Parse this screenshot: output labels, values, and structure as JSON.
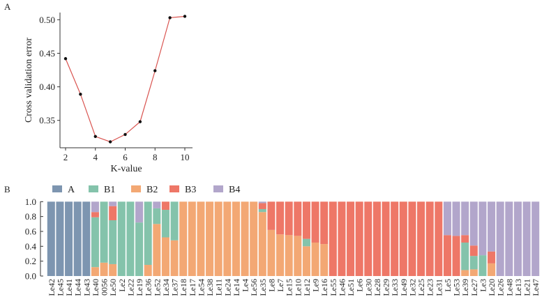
{
  "chart_data": [
    {
      "panel": "A",
      "type": "line",
      "title": "",
      "xlabel": "K-value",
      "ylabel": "Cross validation error",
      "x": [
        2,
        3,
        4,
        5,
        6,
        7,
        8,
        9,
        10
      ],
      "series": [
        {
          "name": "Cross validation error",
          "values": [
            0.442,
            0.389,
            0.326,
            0.318,
            0.329,
            0.348,
            0.424,
            0.503,
            0.505
          ],
          "color": "#d9534f",
          "marker_color": "#111111"
        }
      ],
      "xticks": [
        "2",
        "4",
        "6",
        "8",
        "10"
      ],
      "xtick_values": [
        2,
        4,
        6,
        8,
        10
      ],
      "yticks": [
        "0.35",
        "0.40",
        "0.45",
        "0.50"
      ],
      "ytick_values": [
        0.35,
        0.4,
        0.45,
        0.5
      ],
      "xlim": [
        1.8,
        10.4
      ],
      "ylim": [
        0.31,
        0.513
      ],
      "grid": false
    },
    {
      "panel": "B",
      "type": "bar",
      "stacked": true,
      "title": "",
      "xlabel": "",
      "ylabel": "",
      "ylim": [
        0,
        1.0
      ],
      "yticks": [
        "0.0",
        "0.2",
        "0.4",
        "0.6",
        "0.8",
        "1.0"
      ],
      "ytick_values": [
        0,
        0.2,
        0.4,
        0.6,
        0.8,
        1.0
      ],
      "legend_position": "top-left",
      "grid": false,
      "series_order": [
        "B2",
        "A",
        "B1",
        "B3",
        "B4"
      ],
      "legend": [
        {
          "name": "A",
          "color": "#7d95b0"
        },
        {
          "name": "B1",
          "color": "#84c3ab"
        },
        {
          "name": "B2",
          "color": "#f3a874"
        },
        {
          "name": "B3",
          "color": "#ee7767"
        },
        {
          "name": "B4",
          "color": "#b2a6cb"
        }
      ],
      "categories": [
        "Le42",
        "Le45",
        "Le41",
        "Le44",
        "Le43",
        "Le40",
        "0056",
        "Le50",
        "Le2",
        "Le22",
        "Le19",
        "Le36",
        "Le52",
        "Le34",
        "Le37",
        "Le18",
        "Le17",
        "Le54",
        "Le38",
        "Le11",
        "Le24",
        "Le14",
        "Le4",
        "Le56",
        "Le35",
        "Le8",
        "Le7",
        "Le15",
        "Le10",
        "Le12",
        "Le9",
        "Le16",
        "Le55",
        "Le46",
        "Le51",
        "Le6",
        "Le30",
        "Le28",
        "Le29",
        "Le33",
        "Le49",
        "Le32",
        "Le25",
        "Le23",
        "Le31",
        "Le5",
        "Le53",
        "Le39",
        "Le27",
        "Le3",
        "Le20",
        "Le26",
        "Le48",
        "Le13",
        "Le21",
        "Le47"
      ],
      "series": [
        {
          "name": "B2",
          "values": [
            0,
            0,
            0,
            0,
            0,
            0.12,
            0.18,
            0.16,
            0,
            0,
            0,
            0.15,
            0.7,
            0.52,
            0.48,
            1,
            1,
            1,
            1,
            1,
            1,
            1,
            1,
            1,
            0.86,
            0.62,
            0.56,
            0.55,
            0.54,
            0.4,
            0.45,
            0.43,
            0,
            0,
            0,
            0,
            0,
            0,
            0,
            0,
            0,
            0,
            0,
            0,
            0,
            0,
            0,
            0.08,
            0.09,
            0,
            0.17,
            0,
            0,
            0,
            0,
            0
          ]
        },
        {
          "name": "A",
          "values": [
            1,
            1,
            1,
            1,
            1,
            0,
            0,
            0,
            0,
            0,
            0,
            0,
            0,
            0,
            0,
            0,
            0,
            0,
            0,
            0,
            0,
            0,
            0,
            0,
            0,
            0,
            0,
            0,
            0,
            0,
            0,
            0,
            0,
            0,
            0,
            0,
            0,
            0,
            0,
            0,
            0,
            0,
            0,
            0,
            0,
            0,
            0,
            0,
            0,
            0,
            0,
            0,
            0,
            0,
            0,
            0
          ]
        },
        {
          "name": "B1",
          "values": [
            0,
            0,
            0,
            0,
            0,
            0.67,
            0.82,
            0.59,
            1,
            1,
            0.72,
            0.85,
            0.21,
            0.37,
            0.52,
            0,
            0,
            0,
            0,
            0,
            0,
            0,
            0,
            0,
            0.04,
            0,
            0,
            0,
            0,
            0.1,
            0,
            0,
            0,
            0,
            0,
            0,
            0,
            0,
            0,
            0,
            0,
            0,
            0,
            0,
            0,
            0,
            0,
            0.37,
            0.18,
            0.28,
            0,
            0,
            0,
            0,
            0,
            0
          ]
        },
        {
          "name": "B3",
          "values": [
            0,
            0,
            0,
            0,
            0,
            0.07,
            0,
            0.19,
            0,
            0,
            0,
            0,
            0,
            0.11,
            0,
            0,
            0,
            0,
            0,
            0,
            0,
            0,
            0,
            0,
            0.08,
            0.38,
            0.44,
            0.45,
            0.46,
            0.5,
            0.55,
            0.57,
            1,
            1,
            1,
            1,
            1,
            1,
            1,
            1,
            1,
            1,
            1,
            1,
            1,
            0.55,
            0.54,
            0.1,
            0.14,
            0,
            0.16,
            0,
            0,
            0,
            0,
            0
          ]
        },
        {
          "name": "B4",
          "values": [
            0,
            0,
            0,
            0,
            0,
            0.14,
            0,
            0.06,
            0,
            0,
            0.28,
            0,
            0.09,
            0,
            0,
            0,
            0,
            0,
            0,
            0,
            0,
            0,
            0,
            0,
            0.02,
            0,
            0,
            0,
            0,
            0,
            0,
            0,
            0,
            0,
            0,
            0,
            0,
            0,
            0,
            0,
            0,
            0,
            0,
            0,
            0,
            0.45,
            0.46,
            0.45,
            0.59,
            0.72,
            0.67,
            1,
            1,
            1,
            1,
            1
          ]
        }
      ]
    }
  ]
}
